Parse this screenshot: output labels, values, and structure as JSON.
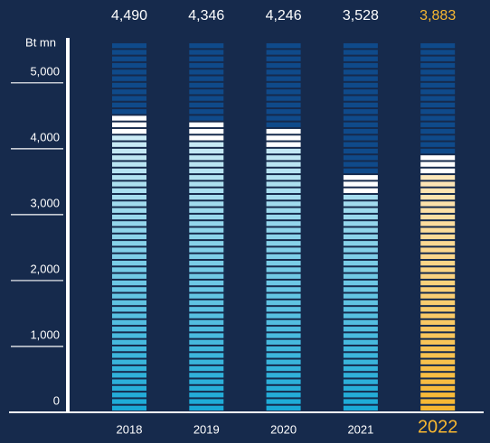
{
  "chart_data": {
    "type": "bar",
    "y_label": "Bt mn",
    "categories": [
      "2018",
      "2019",
      "2020",
      "2021",
      "2022"
    ],
    "values": [
      4490,
      4346,
      4246,
      3528,
      3883
    ],
    "value_labels": [
      "4,490",
      "4,346",
      "4,246",
      "3,528",
      "3,883"
    ],
    "colors": [
      "#1ba9d6",
      "#1ba9d6",
      "#1ba9d6",
      "#1ba9d6",
      "#f7b731"
    ],
    "empty_color": "#0f4a8a",
    "ylim": [
      0,
      5600
    ],
    "yticks": [
      0,
      {
        "value": 1000,
        "label": "1,000"
      },
      {
        "value": 2000,
        "label": "2,000"
      },
      {
        "value": 3000,
        "label": "3,000"
      },
      {
        "value": 4000,
        "label": "4,000"
      },
      {
        "value": 5000,
        "label": "5,000"
      }
    ]
  }
}
